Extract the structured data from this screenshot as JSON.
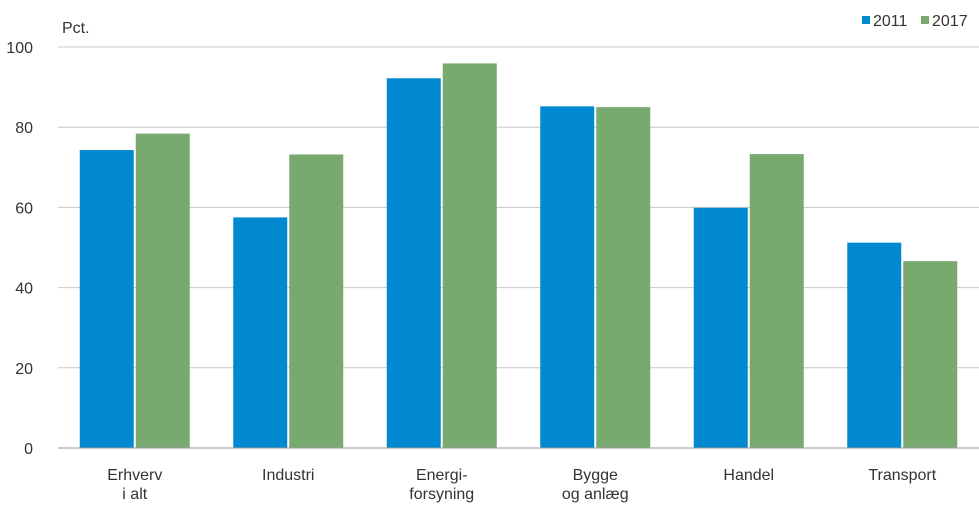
{
  "chart_data": {
    "type": "bar",
    "unit_label": "Pct.",
    "categories": [
      [
        "Erhverv",
        "i alt"
      ],
      [
        "Industri"
      ],
      [
        "Energi-",
        "forsyning"
      ],
      [
        "Bygge",
        "og anlæg"
      ],
      [
        "Handel"
      ],
      [
        "Transport"
      ]
    ],
    "series": [
      {
        "name": "2011",
        "color": "#0088d0",
        "values": [
          74.3,
          57.5,
          92.2,
          85.2,
          59.9,
          51.2
        ]
      },
      {
        "name": "2017",
        "color": "#78aa70",
        "values": [
          78.4,
          73.2,
          95.9,
          85.0,
          73.3,
          46.6
        ]
      }
    ],
    "ylim": [
      0,
      100
    ],
    "yticks": [
      0,
      20,
      40,
      60,
      80,
      100
    ],
    "grid": true,
    "legend": "top-right"
  }
}
